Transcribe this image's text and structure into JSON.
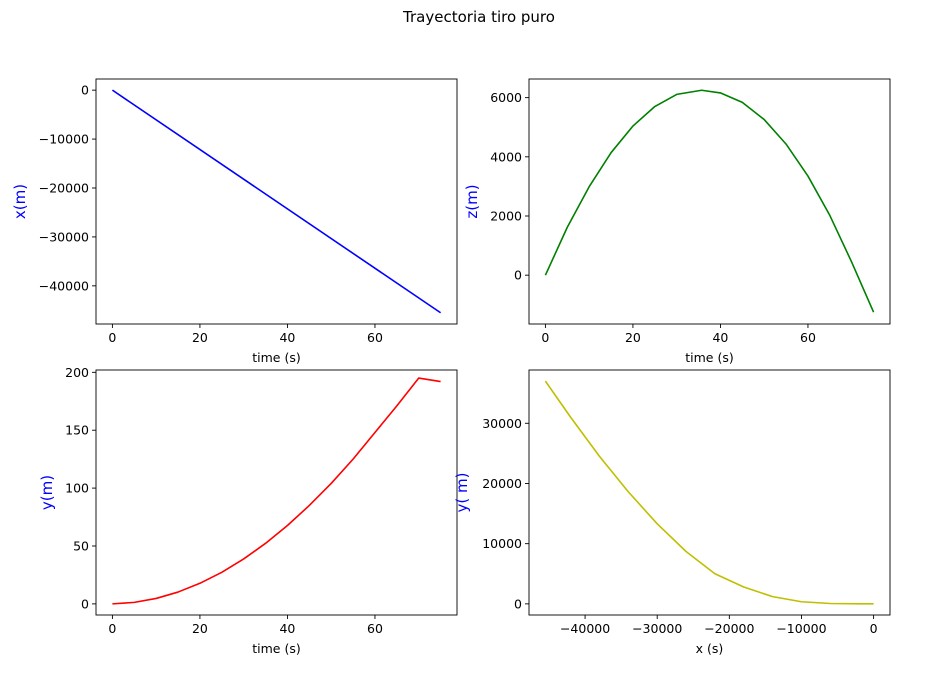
{
  "figure": {
    "suptitle": "Trayectoria tiro puro"
  },
  "chart_data": [
    {
      "type": "line",
      "title": "",
      "xlabel": "time (s)",
      "ylabel": "x(m)",
      "ylabel_color": "#0000ff",
      "color": "#0000ff",
      "xlim": [
        -3.75,
        78.75
      ],
      "ylim": [
        -47800,
        2280
      ],
      "xticks": [
        0,
        20,
        40,
        60
      ],
      "xtick_labels": [
        "0",
        "20",
        "40",
        "60"
      ],
      "yticks": [
        0,
        -10000,
        -20000,
        -30000,
        -40000
      ],
      "ytick_labels": [
        "0",
        "−10000",
        "−20000",
        "−30000",
        "−40000"
      ],
      "grid": false,
      "x": [
        0,
        75
      ],
      "y": [
        0,
        -45500
      ]
    },
    {
      "type": "line",
      "title": "",
      "xlabel": "time (s)",
      "ylabel": "z(m)",
      "ylabel_color": "#0000ff",
      "color": "#008000",
      "xlim": [
        -3.75,
        78.75
      ],
      "ylim": [
        -1650,
        6630
      ],
      "xticks": [
        0,
        20,
        40,
        60
      ],
      "xtick_labels": [
        "0",
        "20",
        "40",
        "60"
      ],
      "yticks": [
        0,
        2000,
        4000,
        6000
      ],
      "ytick_labels": [
        "0",
        "2000",
        "4000",
        "6000"
      ],
      "grid": false,
      "x": [
        0,
        5,
        10,
        15,
        20,
        25,
        30,
        35.7,
        40,
        45,
        50,
        55,
        60,
        65,
        70,
        75
      ],
      "y": [
        0,
        1620,
        2990,
        4140,
        5040,
        5700,
        6110,
        6250,
        6160,
        5840,
        5260,
        4430,
        3350,
        2020,
        440,
        -1250
      ]
    },
    {
      "type": "line",
      "title": "",
      "xlabel": "time (s)",
      "ylabel": "y(m)",
      "ylabel_color": "#0000ff",
      "color": "#ff0000",
      "xlim": [
        -3.75,
        78.75
      ],
      "ylim": [
        -9.6,
        202
      ],
      "xticks": [
        0,
        20,
        40,
        60
      ],
      "xtick_labels": [
        "0",
        "20",
        "40",
        "60"
      ],
      "yticks": [
        0,
        50,
        100,
        150,
        200
      ],
      "ytick_labels": [
        "0",
        "50",
        "100",
        "150",
        "200"
      ],
      "grid": false,
      "x": [
        0,
        5,
        10,
        15,
        20,
        25,
        30,
        35,
        40,
        45,
        50,
        55,
        60,
        65,
        70,
        75
      ],
      "y": [
        0,
        1.3,
        4.7,
        10.2,
        17.8,
        27.3,
        38.8,
        52.3,
        67.7,
        85,
        104,
        125,
        148,
        171,
        195,
        192
      ]
    },
    {
      "type": "line",
      "title": "",
      "xlabel": "x (s)",
      "ylabel": "y( m)",
      "ylabel_color": "#0000ff",
      "color": "#bfbf00",
      "xlim": [
        -47775,
        2275
      ],
      "ylim": [
        -1850,
        38850
      ],
      "xticks": [
        -40000,
        -30000,
        -20000,
        -10000,
        0
      ],
      "xtick_labels": [
        "−40000",
        "−30000",
        "−20000",
        "−10000",
        "0"
      ],
      "yticks": [
        0,
        10000,
        20000,
        30000
      ],
      "ytick_labels": [
        "0",
        "10000",
        "20000",
        "30000"
      ],
      "grid": false,
      "x": [
        -45500,
        -42000,
        -38000,
        -34000,
        -30000,
        -26000,
        -22000,
        -18000,
        -14000,
        -10000,
        -6000,
        -2000,
        0
      ],
      "y": [
        37000,
        31000,
        24500,
        18600,
        13300,
        8700,
        5000,
        2800,
        1200,
        350,
        60,
        0,
        0
      ]
    }
  ]
}
